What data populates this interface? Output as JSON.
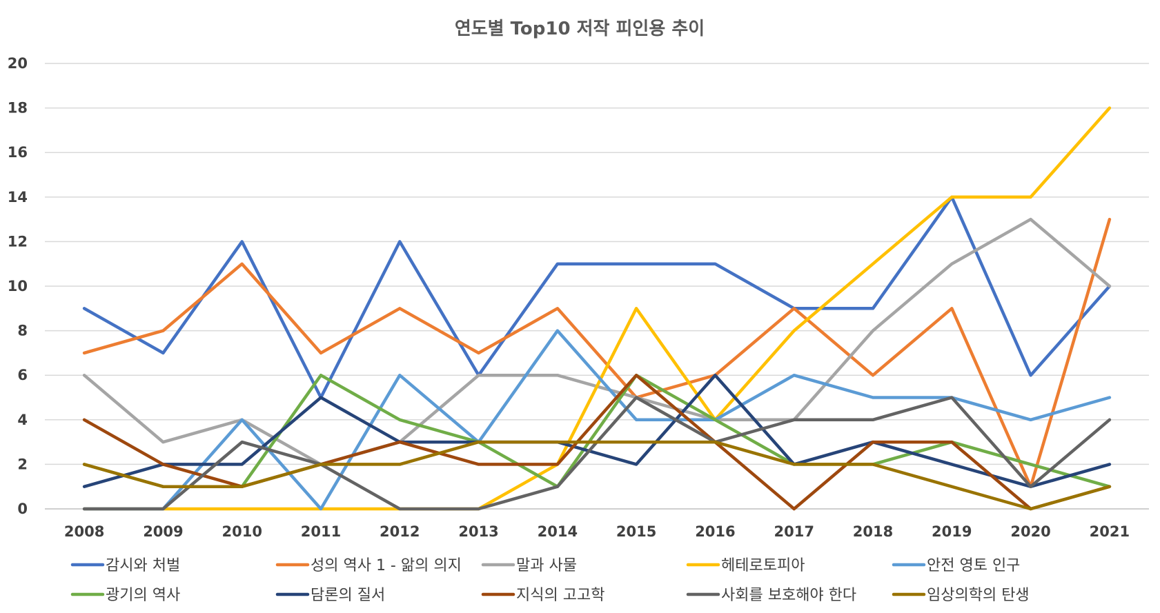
{
  "chart_data": {
    "type": "line",
    "title": "연도별 Top10 저작 피인용 추이",
    "xlabel": "",
    "ylabel": "",
    "x": [
      "2008",
      "2009",
      "2010",
      "2011",
      "2012",
      "2013",
      "2014",
      "2015",
      "2016",
      "2017",
      "2018",
      "2019",
      "2020",
      "2021"
    ],
    "ylim": [
      0,
      20
    ],
    "yticks": [
      "0",
      "2",
      "4",
      "6",
      "8",
      "10",
      "12",
      "14",
      "16",
      "18",
      "20"
    ],
    "grid": true,
    "legend_position": "bottom",
    "series": [
      {
        "name": "감시와 처벌",
        "color": "#4472C4",
        "values": [
          9,
          7,
          12,
          5,
          12,
          6,
          11,
          11,
          11,
          9,
          9,
          14,
          6,
          10
        ]
      },
      {
        "name": "성의 역사 1 - 앎의 의지",
        "color": "#ED7D31",
        "values": [
          7,
          8,
          11,
          7,
          9,
          7,
          9,
          5,
          6,
          9,
          6,
          9,
          1,
          13
        ]
      },
      {
        "name": "말과 사물",
        "color": "#A5A5A5",
        "values": [
          6,
          3,
          4,
          2,
          3,
          6,
          6,
          5,
          4,
          4,
          8,
          11,
          13,
          10
        ]
      },
      {
        "name": "헤테로토피아",
        "color": "#FFC000",
        "values": [
          0,
          0,
          0,
          0,
          0,
          0,
          2,
          9,
          4,
          8,
          11,
          14,
          14,
          18
        ]
      },
      {
        "name": "안전 영토 인구",
        "color": "#5B9BD5",
        "values": [
          0,
          0,
          4,
          0,
          6,
          3,
          8,
          4,
          4,
          6,
          5,
          5,
          4,
          5
        ]
      },
      {
        "name": "광기의 역사",
        "color": "#70AD47",
        "values": [
          2,
          1,
          1,
          6,
          4,
          3,
          1,
          6,
          4,
          2,
          2,
          3,
          2,
          1
        ]
      },
      {
        "name": "담론의 질서",
        "color": "#264478",
        "values": [
          1,
          2,
          2,
          5,
          3,
          3,
          3,
          2,
          6,
          2,
          3,
          2,
          1,
          2
        ]
      },
      {
        "name": "지식의 고고학",
        "color": "#9E480E",
        "values": [
          4,
          2,
          1,
          2,
          3,
          2,
          2,
          6,
          3,
          0,
          3,
          3,
          0,
          1
        ]
      },
      {
        "name": "사회를 보호해야 한다",
        "color": "#636363",
        "values": [
          0,
          0,
          3,
          2,
          0,
          0,
          1,
          5,
          3,
          4,
          4,
          5,
          1,
          4
        ]
      },
      {
        "name": "임상의학의 탄생",
        "color": "#997300",
        "values": [
          2,
          1,
          1,
          2,
          2,
          3,
          3,
          3,
          3,
          2,
          2,
          1,
          0,
          1
        ]
      }
    ]
  }
}
